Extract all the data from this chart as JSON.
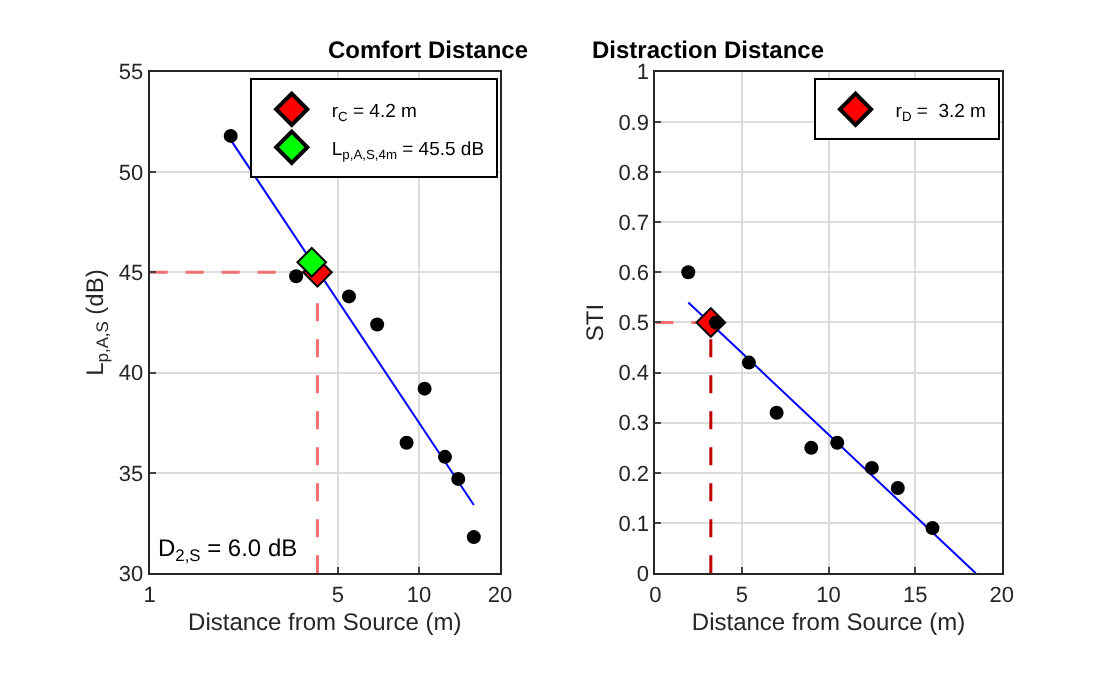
{
  "chart_data": [
    {
      "type": "scatter",
      "title": "Comfort Distance",
      "xlabel": "Distance from Source (m)",
      "ylabel": "L$_{p,A,S}$ (dB)",
      "log": "x",
      "xlim": [
        1,
        20
      ],
      "xticks": [
        1,
        5,
        10,
        20
      ],
      "ylim": [
        30,
        55
      ],
      "yticks": [
        30,
        35,
        40,
        45,
        50,
        55
      ],
      "grid": true,
      "legend": "top right",
      "annotations": [
        "D$_{2,S}$ = 6.0 dB"
      ],
      "ref_lines": [
        {
          "axis": "y",
          "value": 45,
          "color": "#f07070",
          "line_style": "dashed"
        },
        {
          "axis": "x",
          "value": 4.2,
          "color": "#f07070",
          "line_style": "dashed"
        }
      ],
      "series": [
        {
          "type": "line",
          "marker": "none",
          "color": "#0000ff",
          "x": [
            2.0,
            16.0
          ],
          "values": [
            51.6,
            33.4
          ]
        },
        {
          "marker": "diamond",
          "name": "r$_{C}$ = 4.2 m",
          "color": "#ff0000",
          "x": [
            4.2
          ],
          "values": [
            45.0
          ]
        },
        {
          "marker": "diamond",
          "name": "L$_{p,A,S,4m}$ = 45.5 dB",
          "color": "#00ff00",
          "x": [
            4.0
          ],
          "values": [
            45.5
          ]
        },
        {
          "marker": "circle",
          "color": "#000000",
          "x": [
            2.0,
            3.5,
            5.5,
            7.0,
            9.0,
            10.5,
            12.5,
            14.0,
            16.0
          ],
          "values": [
            51.8,
            44.8,
            43.8,
            42.4,
            36.5,
            39.2,
            35.8,
            34.7,
            31.8
          ]
        }
      ]
    },
    {
      "type": "scatter",
      "title": "Distraction Distance",
      "xlabel": "Distance from Source (m)",
      "ylabel": "STI",
      "xlim": [
        0,
        20
      ],
      "xticks": [
        0,
        5,
        10,
        15,
        20
      ],
      "ylim": [
        0,
        1
      ],
      "yticks": [
        0,
        0.1,
        0.2,
        0.3,
        0.4,
        0.5,
        0.6,
        0.7,
        0.8,
        0.9,
        1
      ],
      "grid": true,
      "legend": "top right",
      "ref_lines": [
        {
          "axis": "y",
          "value": 0.5,
          "color": "#f07070",
          "line_style": "dashed"
        },
        {
          "axis": "x",
          "value": 3.2,
          "color": "#c00000",
          "line_style": "dashed"
        }
      ],
      "series": [
        {
          "type": "line",
          "marker": "none",
          "color": "#0000ff",
          "x": [
            1.9,
            18.5
          ],
          "values": [
            0.54,
            0.0
          ]
        },
        {
          "marker": "diamond",
          "name": "r$_{D}$ =  3.2 m",
          "color": "#ff0000",
          "x": [
            3.2
          ],
          "values": [
            0.5
          ]
        },
        {
          "marker": "circle",
          "color": "#000000",
          "x": [
            1.9,
            3.5,
            5.4,
            7.0,
            9.0,
            10.5,
            12.5,
            14.0,
            16.0
          ],
          "values": [
            0.6,
            0.5,
            0.42,
            0.32,
            0.25,
            0.26,
            0.21,
            0.17,
            0.09
          ]
        }
      ]
    }
  ]
}
